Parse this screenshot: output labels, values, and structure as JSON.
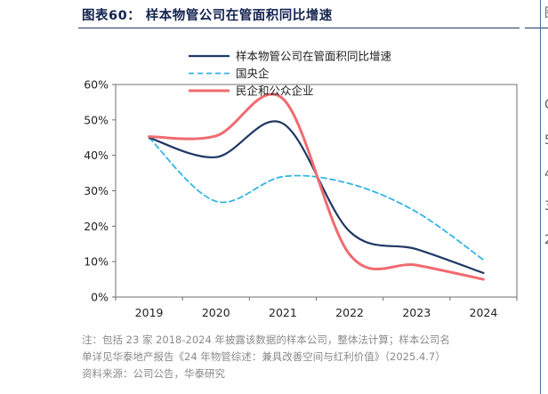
{
  "figure": {
    "title": "图表60： 样本物管公司在管面积同比增速"
  },
  "chart_data": {
    "type": "line",
    "title": "图表60： 样本物管公司在管面积同比增速",
    "xlabel": "",
    "ylabel": "",
    "categories": [
      "2019",
      "2020",
      "2021",
      "2022",
      "2023",
      "2024"
    ],
    "ylim": [
      0,
      60
    ],
    "yticks": [
      "0%",
      "10%",
      "20%",
      "30%",
      "40%",
      "50%",
      "60%"
    ],
    "grid": false,
    "legend_position": "top",
    "series": [
      {
        "name": "样本物管公司在管面积同比增速",
        "color": "#1f3864",
        "style": "solid",
        "values": [
          45,
          39.5,
          49,
          18.5,
          13.5,
          6.8
        ]
      },
      {
        "name": "国央企",
        "color": "#33b5e5",
        "style": "dashed",
        "values": [
          45,
          27,
          34,
          32,
          24,
          10.5
        ]
      },
      {
        "name": "民企和公众企业",
        "color": "#f06b70",
        "style": "solid",
        "values": [
          45.3,
          45.5,
          56,
          12,
          9,
          5
        ]
      }
    ]
  },
  "notes": {
    "line1": "注：包括 23 家 2018-2024 年披露该数据的样本公司，整体法计算；样本公司名",
    "line2": "单详见华泰地产报告《24 年物管综述：兼具改善空间与红利价值》（2025.4.7）",
    "line3": "资料来源：公司公告，华泰研究"
  },
  "edge_glyphs": [
    "图",
    "C",
    "5",
    "4",
    "3",
    "2"
  ]
}
